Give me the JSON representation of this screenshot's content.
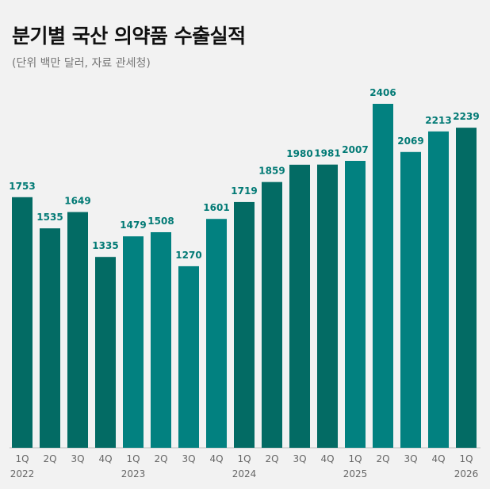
{
  "title": "분기별 국산 의약품 수출실적",
  "subtitle": "(단위 백만 달러, 자료 관세청)",
  "colors": {
    "background": "#f2f2f2",
    "bar_dark": "#036b64",
    "bar_light": "#028180",
    "label": "#027a75",
    "tick": "#666666"
  },
  "chart_data": {
    "type": "bar",
    "categories": [
      "1Q",
      "2Q",
      "3Q",
      "4Q",
      "1Q",
      "2Q",
      "3Q",
      "4Q",
      "1Q",
      "2Q",
      "3Q",
      "4Q",
      "1Q",
      "2Q",
      "3Q",
      "4Q",
      "1Q"
    ],
    "years": [
      "2022",
      "",
      "",
      "",
      "2023",
      "",
      "",
      "",
      "2024",
      "",
      "",
      "",
      "2025",
      "",
      "",
      "",
      "2026"
    ],
    "values": [
      1753,
      1535,
      1649,
      1335,
      1479,
      1508,
      1270,
      1601,
      1719,
      1859,
      1980,
      1981,
      2007,
      2406,
      2069,
      2213,
      2239
    ],
    "year_groups": [
      "2022",
      "2022",
      "2022",
      "2022",
      "2023",
      "2023",
      "2023",
      "2023",
      "2024",
      "2024",
      "2024",
      "2024",
      "2025",
      "2025",
      "2025",
      "2025",
      "2026"
    ],
    "ylim": [
      0,
      2406
    ],
    "title": "분기별 국산 의약품 수출실적",
    "xlabel": "",
    "ylabel": "",
    "grid": false,
    "legend": "none"
  }
}
